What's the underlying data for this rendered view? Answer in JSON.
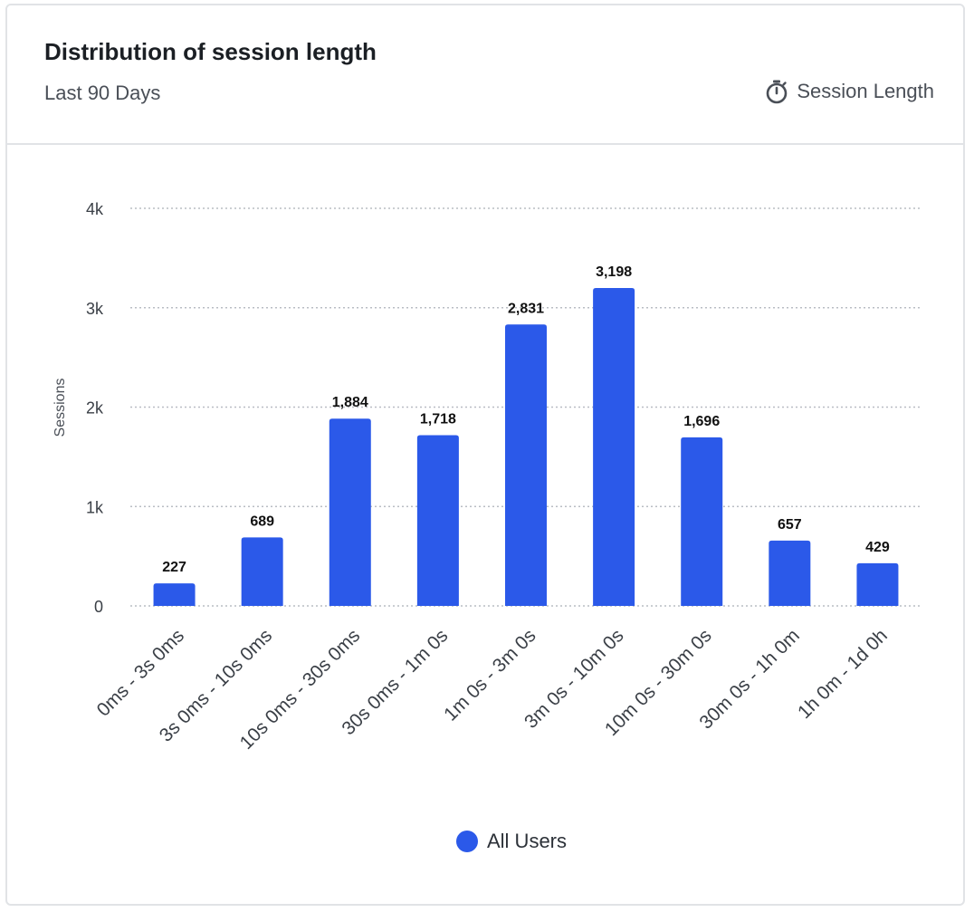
{
  "header": {
    "title": "Distribution of session length",
    "subtitle": "Last 90 Days",
    "metric_label": "Session Length",
    "metric_icon": "stopwatch-icon"
  },
  "colors": {
    "bar": "#2b59e9",
    "grid": "#b9bdc4",
    "axis_text": "#3a3f46",
    "data_label": "#111111"
  },
  "legend": {
    "label": "All Users"
  },
  "chart_data": {
    "type": "bar",
    "title": "Distribution of session length",
    "subtitle": "Last 90 Days",
    "xlabel": "",
    "ylabel": "Sessions",
    "ylim": [
      0,
      4000
    ],
    "y_ticks": [
      0,
      1000,
      2000,
      3000,
      4000
    ],
    "y_tick_labels": [
      "0",
      "1k",
      "2k",
      "3k",
      "4k"
    ],
    "grid": true,
    "legend_position": "bottom-center",
    "categories": [
      "0ms - 3s 0ms",
      "3s 0ms - 10s 0ms",
      "10s 0ms - 30s 0ms",
      "30s 0ms - 1m 0s",
      "1m 0s - 3m 0s",
      "3m 0s - 10m 0s",
      "10m 0s - 30m 0s",
      "30m 0s - 1h 0m",
      "1h 0m - 1d 0h"
    ],
    "series": [
      {
        "name": "All Users",
        "values": [
          227,
          689,
          1884,
          1718,
          2831,
          3198,
          1696,
          657,
          429
        ],
        "value_labels": [
          "227",
          "689",
          "1,884",
          "1,718",
          "2,831",
          "3,198",
          "1,696",
          "657",
          "429"
        ]
      }
    ]
  }
}
